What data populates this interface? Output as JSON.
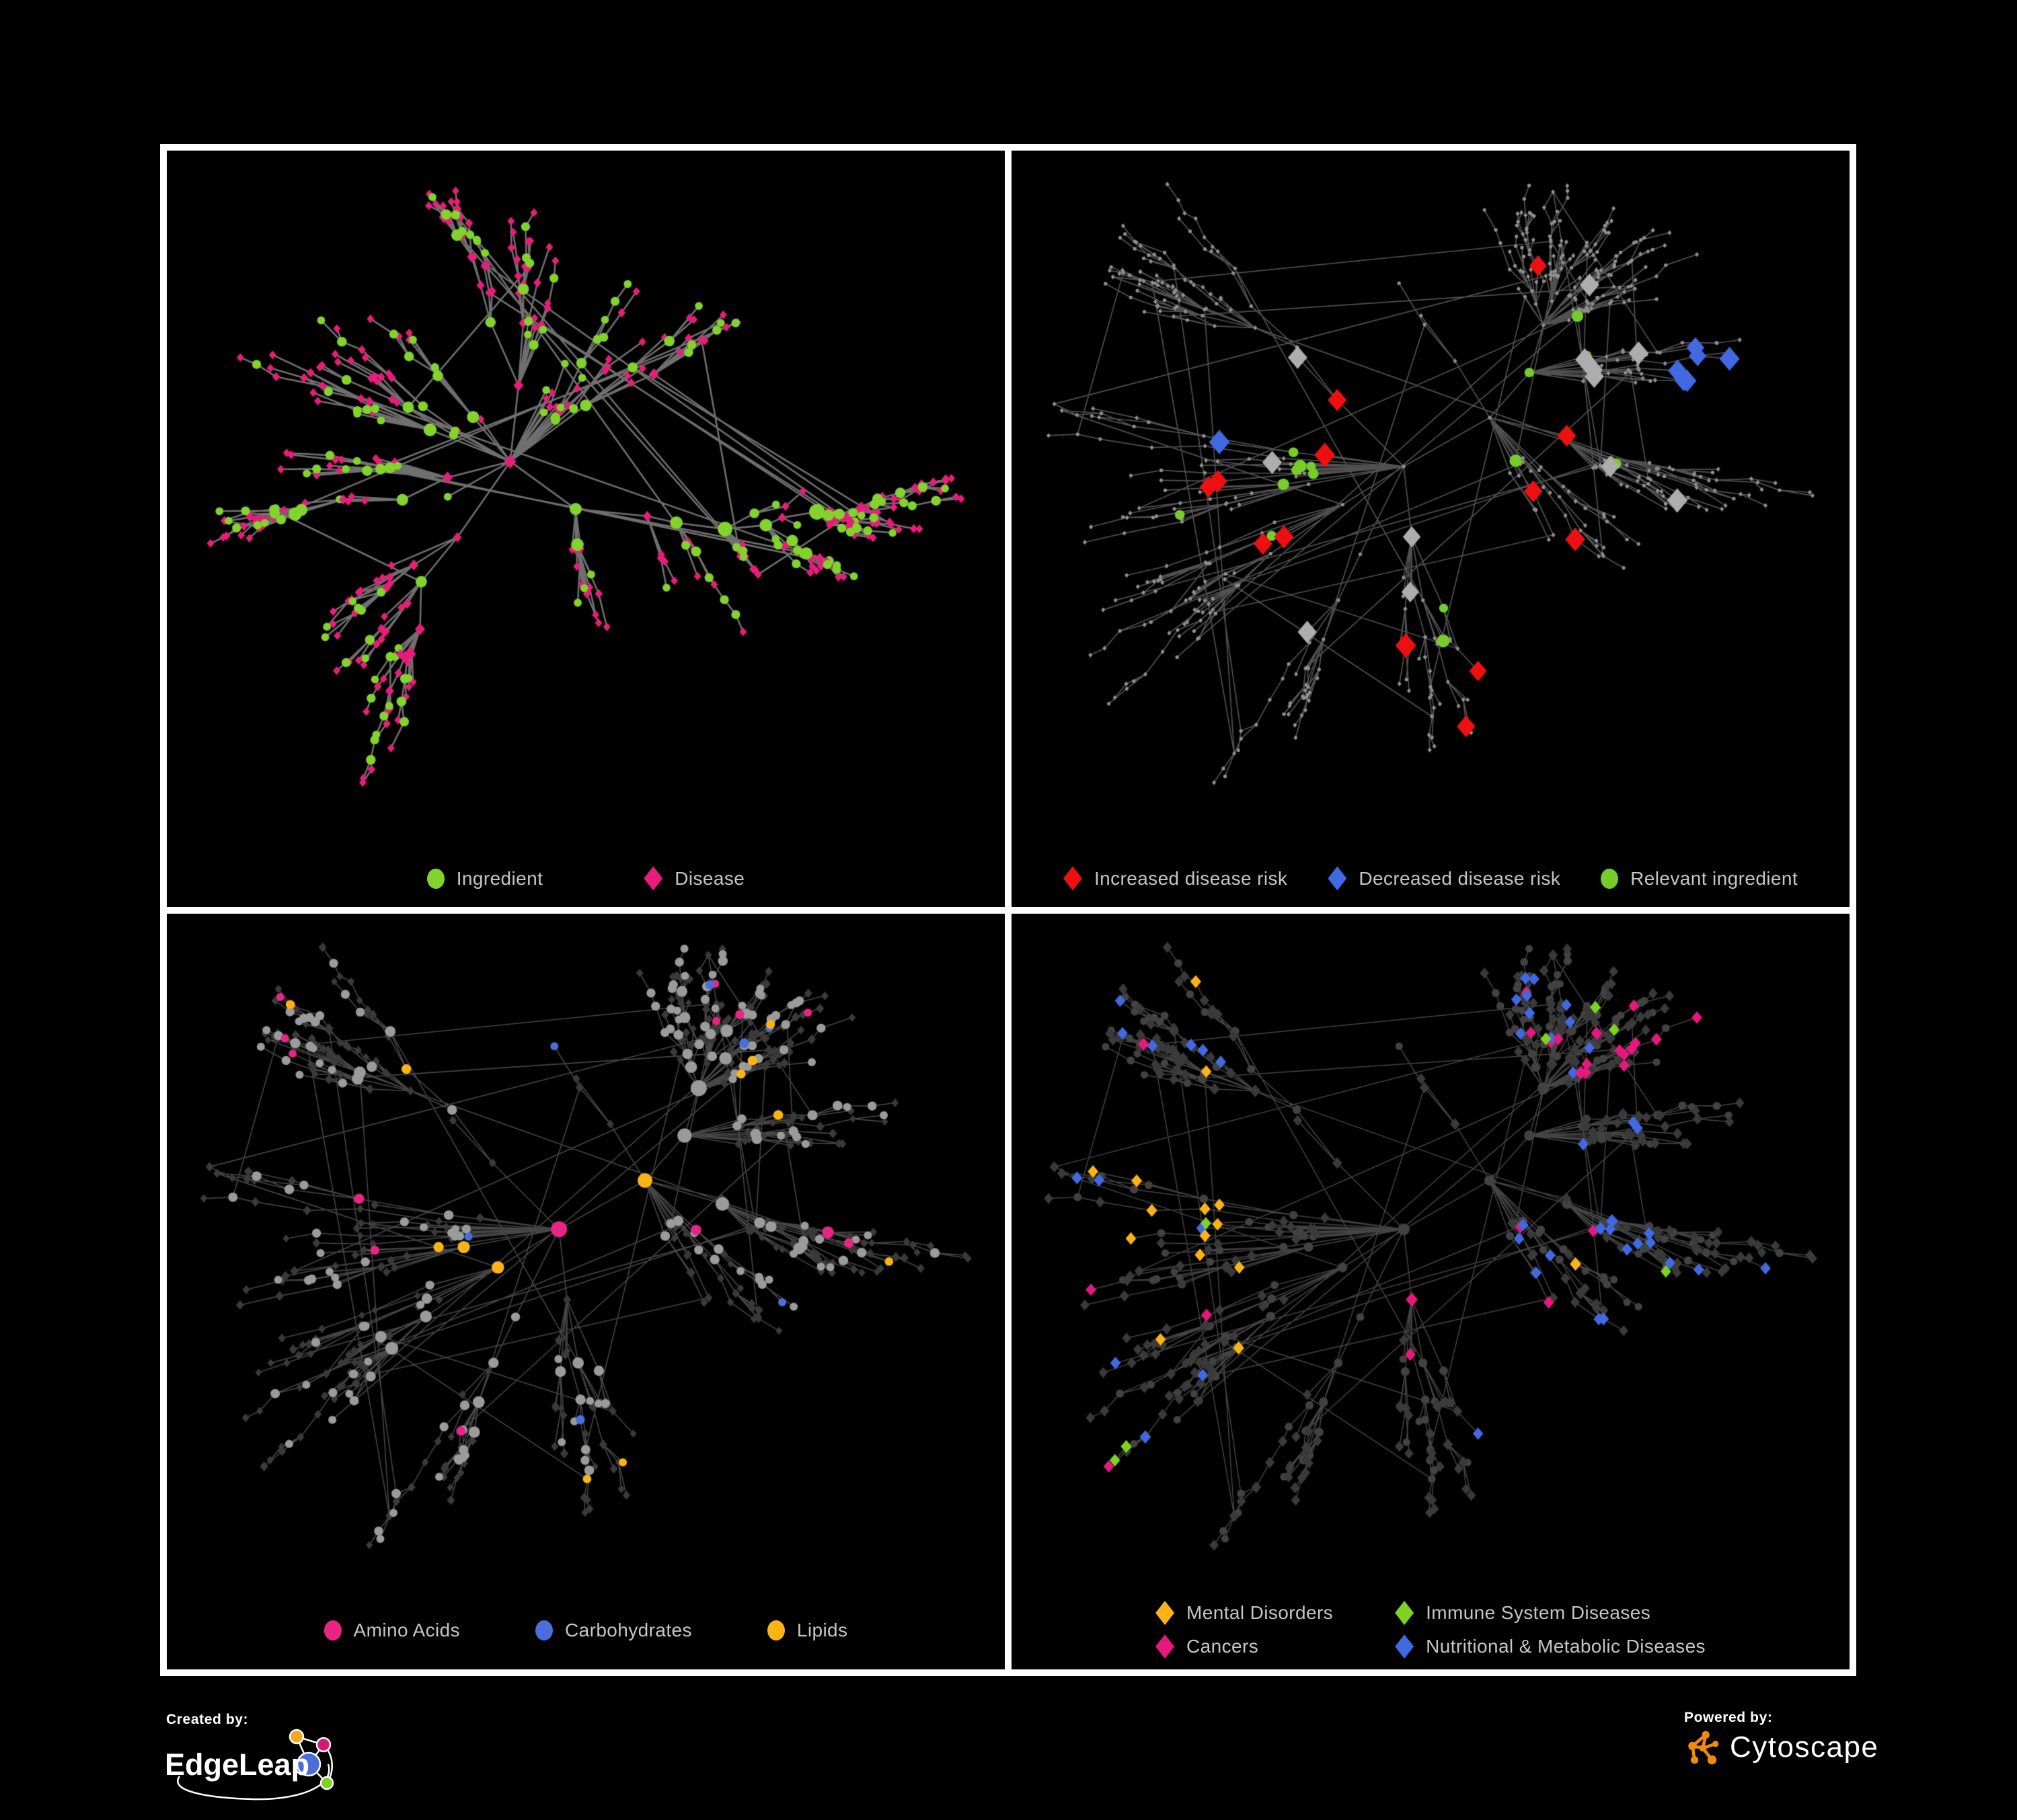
{
  "page": {
    "background": "#000000",
    "frame_border_color": "#ffffff"
  },
  "branding": {
    "created_by_label": "Created by:",
    "created_by_name": "EdgeLeap",
    "powered_by_label": "Powered by:",
    "powered_by_name": "Cytoscape",
    "edgeleap_colors": {
      "orange": "#F5A623",
      "pink": "#D6196F",
      "blue": "#4A6FD8",
      "green": "#7ED321"
    },
    "cytoscape_color": "#EE8B0C"
  },
  "graphs": {
    "g1": {
      "seed": 7919,
      "nodes": 480,
      "len0": 165,
      "decay": 0.66,
      "lenMin": 26,
      "extraEdgeRatio": 0.045,
      "chainProb": 0.3,
      "ingredientBias": [
        0.24,
        0.44,
        0.62
      ]
    },
    "g2": {
      "seed": 5077,
      "nodes": 640,
      "len0": 160,
      "decay": 0.66,
      "lenMin": 25,
      "extraEdgeRatio": 0.05,
      "chainProb": 0.32,
      "ingredientBias": [
        0.24,
        0.44,
        0.62
      ]
    }
  },
  "panels": [
    {
      "name": "ingredient-disease-network",
      "legend": [
        {
          "shape": "circle",
          "color": "#82D32C",
          "label": "Ingredient"
        },
        {
          "shape": "diamond",
          "color": "#E91C7B",
          "label": "Disease"
        }
      ],
      "network": {
        "graph": "g1",
        "style": "ingredient-disease",
        "roleSeed": 11,
        "fit": {
          "l": 65,
          "r": 65,
          "t": 60,
          "b": 185
        },
        "edge": {
          "color": "rgba(130,130,130,0.85)",
          "width": 2.6
        },
        "colors": {
          "ingredient": "#82D32C",
          "disease": "#E91C7B"
        }
      }
    },
    {
      "name": "disease-risk-network",
      "legend": [
        {
          "shape": "diamond",
          "color": "#EE1010",
          "label": "Increased disease risk"
        },
        {
          "shape": "diamond",
          "color": "#4169E1",
          "label": "Decreased disease risk"
        },
        {
          "shape": "circle",
          "color": "#76CC28",
          "label": "Relevant ingredient"
        }
      ],
      "network": {
        "graph": "g2",
        "style": "disease-risk",
        "roleSeed": 22,
        "fit": {
          "l": 55,
          "r": 55,
          "t": 50,
          "b": 185
        },
        "edge": {
          "color": "rgba(115,115,115,0.7)",
          "width": 1.7
        },
        "colors": {
          "base": "#8F8F8F",
          "increased": "#EE1010",
          "decreased": "#4169E1",
          "neutral": "#ADADAD",
          "relevant": "#76CC28"
        }
      }
    },
    {
      "name": "nutrient-class-network",
      "legend": [
        {
          "shape": "circle",
          "color": "#E82585",
          "label": "Amino Acids"
        },
        {
          "shape": "circle",
          "color": "#4A6FDC",
          "label": "Carbohydrates"
        },
        {
          "shape": "circle",
          "color": "#FCB315",
          "label": "Lipids"
        }
      ],
      "network": {
        "graph": "g2",
        "style": "nutrient-classes",
        "roleSeed": 33,
        "fit": {
          "l": 55,
          "r": 55,
          "t": 50,
          "b": 185
        },
        "edge": {
          "color": "rgba(140,140,140,0.5)",
          "width": 1.6
        },
        "colors": {
          "ingredient": "#9B9B9B",
          "disease": "#3A3A3A",
          "amino_acids": "#E82585",
          "carbohydrates": "#4A6FDC",
          "lipids": "#FCB315"
        }
      }
    },
    {
      "name": "disease-class-network",
      "legend": [
        {
          "shape": "diamond",
          "color": "#FCB315",
          "label": "Mental Disorders"
        },
        {
          "shape": "diamond",
          "color": "#7ED321",
          "label": "Immune System Diseases"
        },
        {
          "shape": "diamond",
          "color": "#E6187D",
          "label": "Cancers"
        },
        {
          "shape": "diamond",
          "color": "#4169E1",
          "label": "Nutritional & Metabolic Diseases"
        }
      ],
      "network": {
        "graph": "g2",
        "style": "disease-classes",
        "roleSeed": 44,
        "fit": {
          "l": 55,
          "r": 55,
          "t": 50,
          "b": 185
        },
        "edge": {
          "color": "rgba(150,150,150,0.45)",
          "width": 1.5
        },
        "colors": {
          "ingredient": "#424242",
          "disease": "#3A3A3A",
          "mental": "#FCB315",
          "immune": "#7ED321",
          "cancers": "#E6187D",
          "nutritional": "#4169E1"
        }
      }
    }
  ]
}
